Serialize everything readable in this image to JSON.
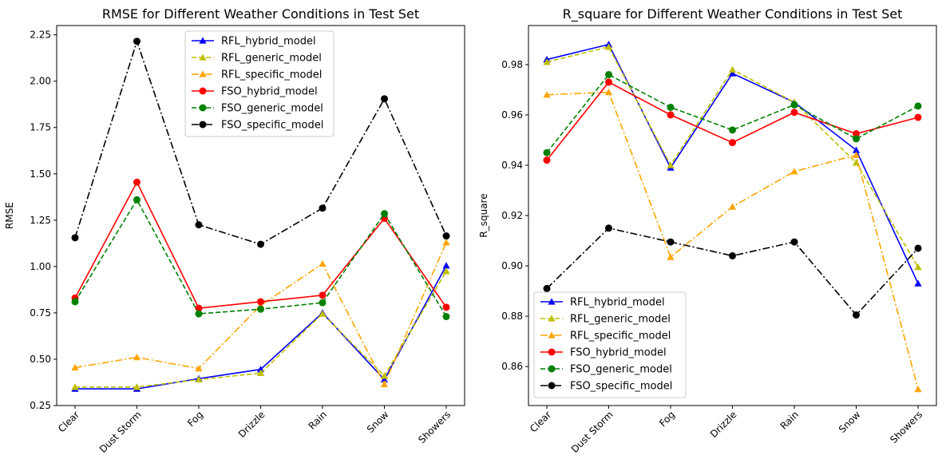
{
  "chart_data": [
    {
      "type": "line",
      "title": "RMSE for Different Weather Conditions in Test Set",
      "xlabel": "",
      "ylabel": "RMSE",
      "ylim": [
        0.25,
        2.3
      ],
      "yticks": [
        "0.25",
        "0.50",
        "0.75",
        "1.00",
        "1.25",
        "1.50",
        "1.75",
        "2.00",
        "2.25"
      ],
      "categories": [
        "Clear",
        "Dust Storm",
        "Fog",
        "Drizzle",
        "Rain",
        "Snow",
        "Showers"
      ],
      "legend_position": "top-center",
      "grid": false,
      "series": [
        {
          "name": "RFL_hybrid_model",
          "color": "#0000ff",
          "dash": "solid",
          "marker": "triangle",
          "values": [
            0.34,
            0.34,
            0.395,
            0.445,
            0.75,
            0.39,
            1.005
          ]
        },
        {
          "name": "RFL_generic_model",
          "color": "#bfbf00",
          "dash": "dashed",
          "marker": "triangle",
          "values": [
            0.35,
            0.35,
            0.39,
            0.425,
            0.745,
            0.41,
            0.975
          ]
        },
        {
          "name": "RFL_specific_model",
          "color": "#ffa500",
          "dash": "dashdot",
          "marker": "triangle",
          "values": [
            0.455,
            0.51,
            0.45,
            0.79,
            1.015,
            0.365,
            1.13
          ]
        },
        {
          "name": "FSO_hybrid_model",
          "color": "#ff0000",
          "dash": "solid",
          "marker": "circle",
          "values": [
            0.83,
            1.455,
            0.775,
            0.81,
            0.845,
            1.26,
            0.78
          ]
        },
        {
          "name": "FSO_generic_model",
          "color": "#008000",
          "dash": "dashed",
          "marker": "circle",
          "values": [
            0.81,
            1.36,
            0.745,
            0.77,
            0.805,
            1.285,
            0.73
          ]
        },
        {
          "name": "FSO_specific_model",
          "color": "#000000",
          "dash": "dashdot",
          "marker": "circle",
          "values": [
            1.155,
            2.215,
            1.225,
            1.12,
            1.315,
            1.905,
            1.165
          ]
        }
      ]
    },
    {
      "type": "line",
      "title": "R_square for Different Weather Conditions in Test Set",
      "xlabel": "",
      "ylabel": "R_square",
      "ylim": [
        0.8445,
        0.9955
      ],
      "yticks": [
        "0.86",
        "0.88",
        "0.90",
        "0.92",
        "0.94",
        "0.96",
        "0.98"
      ],
      "categories": [
        "Clear",
        "Dust Storm",
        "Fog",
        "Drizzle",
        "Rain",
        "Snow",
        "Showers"
      ],
      "legend_position": "lower-left",
      "grid": false,
      "series": [
        {
          "name": "RFL_hybrid_model",
          "color": "#0000ff",
          "dash": "solid",
          "marker": "triangle",
          "values": [
            0.982,
            0.988,
            0.939,
            0.9765,
            0.965,
            0.946,
            0.893
          ]
        },
        {
          "name": "RFL_generic_model",
          "color": "#bfbf00",
          "dash": "dashed",
          "marker": "triangle",
          "values": [
            0.981,
            0.987,
            0.94,
            0.978,
            0.965,
            0.941,
            0.8995
          ]
        },
        {
          "name": "RFL_specific_model",
          "color": "#ffa500",
          "dash": "dashdot",
          "marker": "triangle",
          "values": [
            0.968,
            0.969,
            0.9035,
            0.9235,
            0.9375,
            0.944,
            0.851
          ]
        },
        {
          "name": "FSO_hybrid_model",
          "color": "#ff0000",
          "dash": "solid",
          "marker": "circle",
          "values": [
            0.942,
            0.973,
            0.96,
            0.949,
            0.961,
            0.9525,
            0.959
          ]
        },
        {
          "name": "FSO_generic_model",
          "color": "#008000",
          "dash": "dashed",
          "marker": "circle",
          "values": [
            0.945,
            0.976,
            0.963,
            0.954,
            0.964,
            0.9505,
            0.9635
          ]
        },
        {
          "name": "FSO_specific_model",
          "color": "#000000",
          "dash": "dashdot",
          "marker": "circle",
          "values": [
            0.891,
            0.915,
            0.9095,
            0.904,
            0.9095,
            0.8805,
            0.907
          ]
        }
      ]
    }
  ]
}
